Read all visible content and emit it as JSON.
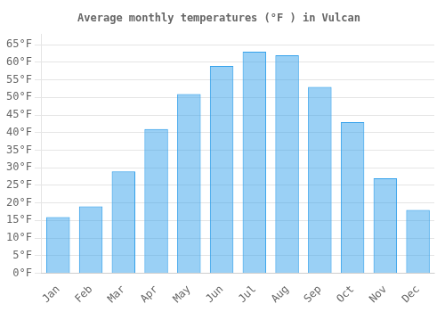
{
  "chart_data": {
    "type": "bar",
    "title": "Average monthly temperatures (°F ) in Vulcan",
    "categories": [
      "Jan",
      "Feb",
      "Mar",
      "Apr",
      "May",
      "Jun",
      "Jul",
      "Aug",
      "Sep",
      "Oct",
      "Nov",
      "Dec"
    ],
    "values": [
      16,
      19,
      29,
      41,
      51,
      59,
      63,
      62,
      53,
      43,
      27,
      18
    ],
    "ylim": [
      0,
      68
    ],
    "yticks": [
      {
        "value": 0,
        "label": "0°F"
      },
      {
        "value": 5,
        "label": "5°F"
      },
      {
        "value": 10,
        "label": "10°F"
      },
      {
        "value": 15,
        "label": "15°F"
      },
      {
        "value": 20,
        "label": "20°F"
      },
      {
        "value": 25,
        "label": "25°F"
      },
      {
        "value": 30,
        "label": "30°F"
      },
      {
        "value": 35,
        "label": "35°F"
      },
      {
        "value": 40,
        "label": "40°F"
      },
      {
        "value": 45,
        "label": "45°F"
      },
      {
        "value": 50,
        "label": "50°F"
      },
      {
        "value": 55,
        "label": "55°F"
      },
      {
        "value": 60,
        "label": "60°F"
      },
      {
        "value": 65,
        "label": "65°F"
      }
    ],
    "grid": true
  }
}
